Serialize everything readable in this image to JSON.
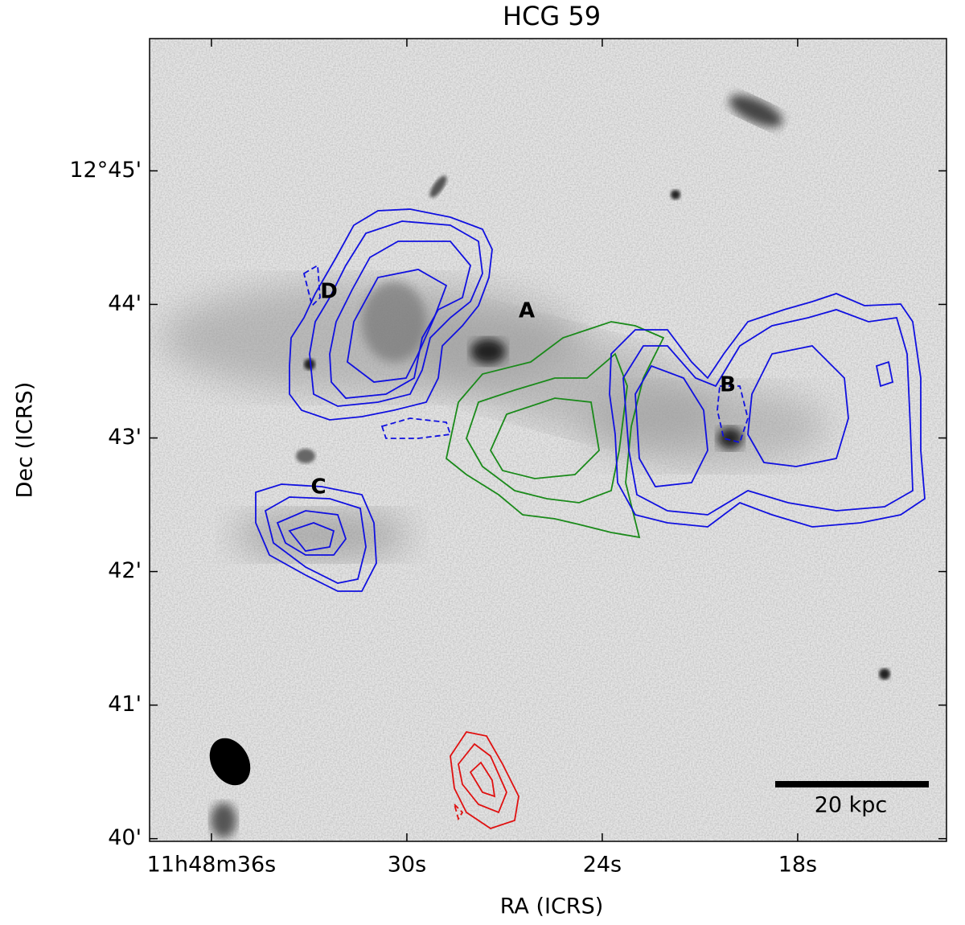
{
  "chart_data": {
    "type": "sky-image",
    "title": "HCG 59",
    "x_label": "RA (ICRS)",
    "y_label": "Dec (ICRS)",
    "xlim": [
      37.9,
      13.43
    ],
    "xticks": [
      {
        "value": 36,
        "label": "11h48m36s"
      },
      {
        "value": 30,
        "label": "30s"
      },
      {
        "value": 24,
        "label": "24s"
      },
      {
        "value": 18,
        "label": "18s"
      }
    ],
    "ylim": [
      39.98,
      45.99
    ],
    "yticks": [
      {
        "value": 45,
        "label": "12°45'"
      },
      {
        "value": 44,
        "label": "44'"
      },
      {
        "value": 43,
        "label": "43'"
      },
      {
        "value": 42,
        "label": "42'"
      },
      {
        "value": 41,
        "label": "41'"
      },
      {
        "value": 40,
        "label": "40'"
      }
    ],
    "annotations": [
      "A",
      "B",
      "C",
      "D"
    ],
    "scale_bar": "20 kpc"
  }
}
